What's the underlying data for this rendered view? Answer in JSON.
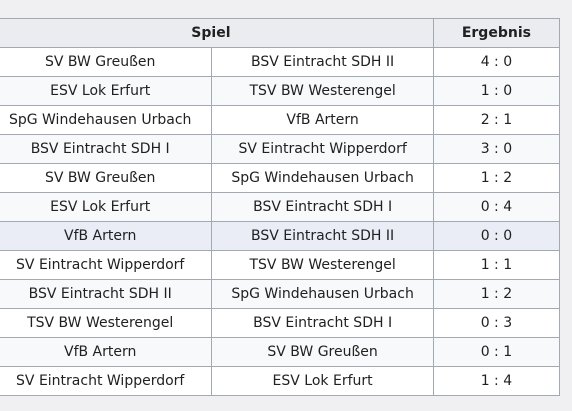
{
  "header": {
    "spiel": "Spiel",
    "ergebnis": "Ergebnis"
  },
  "rows": [
    {
      "home": "SV BW Greußen",
      "away": "BSV Eintracht SDH II",
      "score": "4 : 0"
    },
    {
      "home": "ESV Lok Erfurt",
      "away": "TSV BW Westerengel",
      "score": "1 : 0"
    },
    {
      "home": "SpG Windehausen Urbach",
      "away": "VfB Artern",
      "score": "2 : 1"
    },
    {
      "home": "BSV Eintracht SDH I",
      "away": "SV Eintracht Wipperdorf",
      "score": "3 : 0"
    },
    {
      "home": "SV BW Greußen",
      "away": "SpG Windehausen Urbach",
      "score": "1 : 2"
    },
    {
      "home": "ESV Lok Erfurt",
      "away": "BSV Eintracht SDH I",
      "score": "0 : 4"
    },
    {
      "home": "VfB Artern",
      "away": "BSV Eintracht SDH II",
      "score": "0 : 0"
    },
    {
      "home": "SV Eintracht Wipperdorf",
      "away": "TSV BW Westerengel",
      "score": "1 : 1"
    },
    {
      "home": "BSV Eintracht SDH II",
      "away": "SpG Windehausen Urbach",
      "score": "1 : 2"
    },
    {
      "home": "TSV BW Westerengel",
      "away": "BSV Eintracht SDH I",
      "score": "0 : 3"
    },
    {
      "home": "VfB Artern",
      "away": "SV BW Greußen",
      "score": "0 : 1"
    },
    {
      "home": "SV Eintracht Wipperdorf",
      "away": "ESV Lok Erfurt",
      "score": "1 : 4"
    }
  ]
}
